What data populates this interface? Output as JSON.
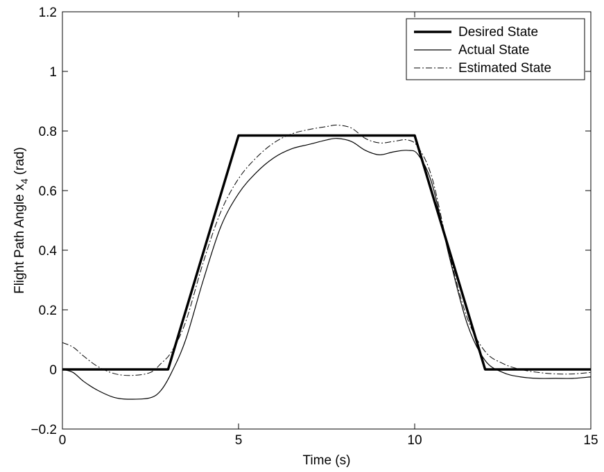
{
  "chart_data": {
    "type": "line",
    "title": "",
    "xlabel": "Time (s)",
    "ylabel_main": "Flight Path Angle x",
    "ylabel_sub": "4",
    "ylabel_unit": " (rad)",
    "xlim": [
      0,
      15
    ],
    "ylim": [
      -0.2,
      1.2
    ],
    "x_ticks": [
      0,
      5,
      10,
      15
    ],
    "x_tick_labels": [
      "0",
      "5",
      "10",
      "15"
    ],
    "y_ticks": [
      -0.2,
      0,
      0.2,
      0.4,
      0.6,
      0.8,
      1,
      1.2
    ],
    "y_tick_labels": [
      "−0.2",
      "0",
      "0.2",
      "0.4",
      "0.6",
      "0.8",
      "1",
      "1.2"
    ],
    "grid": false,
    "legend_position": "top-right",
    "series": [
      {
        "name": "Desired State",
        "style": "thick-solid",
        "color": "#000000",
        "x": [
          0,
          3,
          5,
          10,
          12,
          15
        ],
        "y": [
          0,
          0,
          0.785,
          0.785,
          0,
          0
        ]
      },
      {
        "name": "Actual State",
        "style": "solid",
        "color": "#000000",
        "x": [
          0,
          0.3,
          0.6,
          1,
          1.5,
          2,
          2.5,
          2.8,
          3.1,
          3.5,
          4,
          4.5,
          5,
          5.5,
          6,
          6.5,
          7,
          7.5,
          7.8,
          8.2,
          8.6,
          9,
          9.4,
          9.8,
          10.1,
          10.5,
          11,
          11.5,
          12,
          12.5,
          13,
          13.5,
          14,
          14.5,
          15
        ],
        "y": [
          0,
          -0.01,
          -0.04,
          -0.07,
          -0.095,
          -0.1,
          -0.095,
          -0.07,
          -0.01,
          0.1,
          0.3,
          0.48,
          0.59,
          0.66,
          0.71,
          0.74,
          0.755,
          0.77,
          0.775,
          0.765,
          0.735,
          0.72,
          0.73,
          0.735,
          0.72,
          0.62,
          0.37,
          0.15,
          0.03,
          -0.01,
          -0.025,
          -0.03,
          -0.03,
          -0.03,
          -0.025
        ]
      },
      {
        "name": "Estimated State",
        "style": "dash-dot",
        "color": "#000000",
        "x": [
          0,
          0.3,
          0.6,
          1,
          1.5,
          2,
          2.5,
          2.8,
          3.1,
          3.5,
          4,
          4.5,
          5,
          5.5,
          6,
          6.5,
          7,
          7.5,
          7.8,
          8.2,
          8.6,
          9,
          9.4,
          9.8,
          10.1,
          10.5,
          11,
          11.5,
          12,
          12.5,
          13,
          13.5,
          14,
          14.5,
          15
        ],
        "y": [
          0.09,
          0.075,
          0.045,
          0.01,
          -0.015,
          -0.02,
          -0.01,
          0.02,
          0.06,
          0.16,
          0.36,
          0.53,
          0.64,
          0.71,
          0.76,
          0.79,
          0.805,
          0.815,
          0.82,
          0.81,
          0.775,
          0.76,
          0.765,
          0.77,
          0.745,
          0.64,
          0.38,
          0.17,
          0.06,
          0.02,
          0.0,
          -0.01,
          -0.015,
          -0.015,
          -0.01
        ]
      }
    ]
  }
}
